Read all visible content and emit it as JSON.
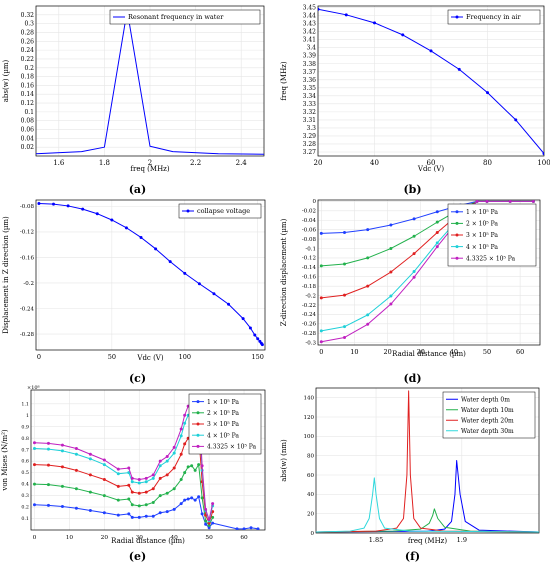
{
  "chart_data": [
    {
      "type": "line",
      "caption": "(a)",
      "xlabel": "freq (MHz)",
      "ylabel": "abs(w) (µm)",
      "xlim": [
        1.5,
        2.5
      ],
      "ylim": [
        0,
        0.34
      ],
      "xticks": [
        "1.6",
        "1.8",
        "2",
        "2.2",
        "2.4"
      ],
      "xtick_values": [
        1.6,
        1.8,
        2.0,
        2.2,
        2.4
      ],
      "yticks": [
        "0.02",
        "0.04",
        "0.06",
        "0.08",
        "0.1",
        "0.12",
        "0.14",
        "0.16",
        "0.18",
        "0.2",
        "0.22",
        "0.24",
        "0.26",
        "0.28",
        "0.3",
        "0.32"
      ],
      "ytick_values": [
        0.02,
        0.04,
        0.06,
        0.08,
        0.1,
        0.12,
        0.14,
        0.16,
        0.18,
        0.2,
        0.22,
        0.24,
        0.26,
        0.28,
        0.3,
        0.32
      ],
      "legend": "top-right",
      "grid": true,
      "series": [
        {
          "name": "Resonant frequency in water",
          "color": "#0000ff",
          "markers": false,
          "x": [
            1.5,
            1.7,
            1.8,
            1.9,
            2.0,
            2.1,
            2.3,
            2.5
          ],
          "y": [
            0.005,
            0.01,
            0.02,
            0.33,
            0.022,
            0.01,
            0.005,
            0.004
          ]
        }
      ]
    },
    {
      "type": "line",
      "caption": "(b)",
      "xlabel": "Vdc (V)",
      "ylabel": "freq (MHz)",
      "xlim": [
        20,
        100
      ],
      "ylim": [
        3.265,
        3.452
      ],
      "xticks": [
        "20",
        "40",
        "60",
        "80",
        "100"
      ],
      "xtick_values": [
        20,
        40,
        60,
        80,
        100
      ],
      "yticks": [
        "3.27",
        "3.28",
        "3.29",
        "3.3",
        "3.31",
        "3.32",
        "3.33",
        "3.34",
        "3.35",
        "3.36",
        "3.37",
        "3.38",
        "3.39",
        "3.4",
        "3.41",
        "3.42",
        "3.43",
        "3.44",
        "3.45"
      ],
      "ytick_values": [
        3.27,
        3.28,
        3.29,
        3.3,
        3.31,
        3.32,
        3.33,
        3.34,
        3.35,
        3.36,
        3.37,
        3.38,
        3.39,
        3.4,
        3.41,
        3.42,
        3.43,
        3.44,
        3.45
      ],
      "legend": "top-right",
      "grid": true,
      "series": [
        {
          "name": "Frequency in air",
          "color": "#0000ff",
          "markers": true,
          "x": [
            20,
            30,
            40,
            50,
            60,
            70,
            80,
            90,
            100
          ],
          "y": [
            3.448,
            3.441,
            3.431,
            3.416,
            3.396,
            3.373,
            3.344,
            3.31,
            3.268
          ]
        }
      ]
    },
    {
      "type": "line",
      "caption": "(c)",
      "xlabel": "Vdc (V)",
      "ylabel": "Displacement in Z direction (µm)",
      "xlim": [
        -2,
        155
      ],
      "ylim": [
        -0.305,
        -0.07
      ],
      "xticks": [
        "0",
        "50",
        "100",
        "150"
      ],
      "xtick_values": [
        0,
        50,
        100,
        150
      ],
      "yticks": [
        "-0.08",
        "-0.12",
        "-0.16",
        "-0.2",
        "-0.24",
        "-0.28"
      ],
      "ytick_values": [
        -0.08,
        -0.12,
        -0.16,
        -0.2,
        -0.24,
        -0.28
      ],
      "legend": "top-right",
      "grid": true,
      "series": [
        {
          "name": "collapse voltage",
          "color": "#0000ff",
          "markers": true,
          "x": [
            0,
            10,
            20,
            30,
            40,
            50,
            60,
            70,
            80,
            90,
            100,
            110,
            120,
            130,
            140,
            145,
            148,
            150,
            151.5,
            152.5,
            153.2
          ],
          "y": [
            -0.0755,
            -0.0764,
            -0.0793,
            -0.0843,
            -0.0915,
            -0.1013,
            -0.1136,
            -0.1287,
            -0.1465,
            -0.1665,
            -0.185,
            -0.2012,
            -0.2168,
            -0.2333,
            -0.2559,
            -0.2705,
            -0.2815,
            -0.2873,
            -0.2915,
            -0.2945,
            -0.2965
          ]
        }
      ]
    },
    {
      "type": "line",
      "caption": "(d)",
      "xlabel": "Radial distance (µm)",
      "ylabel": "Z-direction displacement (µm)",
      "xlim": [
        -1,
        66
      ],
      "ylim": [
        -0.305,
        0.003
      ],
      "xticks": [
        "0",
        "10",
        "20",
        "30",
        "40",
        "50",
        "60"
      ],
      "xtick_values": [
        0,
        10,
        20,
        30,
        40,
        50,
        60
      ],
      "yticks": [
        "0",
        "-0.02",
        "-0.04",
        "-0.06",
        "-0.08",
        "-0.1",
        "-0.12",
        "-0.14",
        "-0.16",
        "-0.18",
        "-0.2",
        "-0.22",
        "-0.24",
        "-0.26",
        "-0.28",
        "-0.3"
      ],
      "ytick_values": [
        0,
        -0.02,
        -0.04,
        -0.06,
        -0.08,
        -0.1,
        -0.12,
        -0.14,
        -0.16,
        -0.18,
        -0.2,
        -0.22,
        -0.24,
        -0.26,
        -0.28,
        -0.3
      ],
      "legend": "top-right",
      "grid": true,
      "series": [
        {
          "name": "1 × 10⁵ Pa",
          "color": "#1f3fff",
          "markers": true,
          "x": [
            0,
            7,
            14,
            21,
            28,
            35,
            42,
            47,
            50,
            57,
            64
          ],
          "y": [
            -0.068,
            -0.066,
            -0.06,
            -0.05,
            -0.037,
            -0.022,
            -0.008,
            0,
            0,
            0,
            0
          ]
        },
        {
          "name": "2 × 10⁵ Pa",
          "color": "#22b14c",
          "markers": true,
          "x": [
            0,
            7,
            14,
            21,
            28,
            35,
            42,
            47,
            50,
            57,
            64
          ],
          "y": [
            -0.137,
            -0.133,
            -0.12,
            -0.1,
            -0.074,
            -0.044,
            -0.016,
            0,
            0,
            0,
            0
          ]
        },
        {
          "name": "3 × 10⁵ Pa",
          "color": "#e02020",
          "markers": true,
          "x": [
            0,
            7,
            14,
            21,
            28,
            35,
            42,
            47,
            50,
            57,
            64
          ],
          "y": [
            -0.205,
            -0.199,
            -0.18,
            -0.15,
            -0.111,
            -0.066,
            -0.024,
            0,
            0,
            0,
            0
          ]
        },
        {
          "name": "4 × 10⁵ Pa",
          "color": "#1fd0d8",
          "markers": true,
          "x": [
            0,
            7,
            14,
            21,
            28,
            35,
            42,
            47,
            50,
            57,
            64
          ],
          "y": [
            -0.275,
            -0.266,
            -0.241,
            -0.201,
            -0.149,
            -0.088,
            -0.032,
            0,
            0,
            0,
            0
          ]
        },
        {
          "name": "4.3325 × 10⁵ Pa",
          "color": "#c020c0",
          "markers": true,
          "x": [
            0,
            7,
            14,
            21,
            28,
            35,
            42,
            47,
            50,
            57,
            64
          ],
          "y": [
            -0.298,
            -0.289,
            -0.261,
            -0.218,
            -0.161,
            -0.096,
            -0.035,
            0,
            0,
            0,
            0
          ]
        }
      ]
    },
    {
      "type": "line",
      "caption": "(e)",
      "xlabel": "Radial distance (µm)",
      "ylabel": "von Mises (N/m²)",
      "exponent_label": "×10⁸",
      "xlim": [
        -1,
        66
      ],
      "ylim": [
        0,
        1.22
      ],
      "xticks": [
        "0",
        "10",
        "20",
        "30",
        "40",
        "50",
        "60"
      ],
      "xtick_values": [
        0,
        10,
        20,
        30,
        40,
        50,
        60
      ],
      "yticks": [
        "0.1",
        "0.2",
        "0.3",
        "0.4",
        "0.5",
        "0.6",
        "0.7",
        "0.8",
        "0.9",
        "1",
        "1.1"
      ],
      "ytick_values": [
        0.1,
        0.2,
        0.3,
        0.4,
        0.5,
        0.6,
        0.7,
        0.8,
        0.9,
        1.0,
        1.1
      ],
      "legend": "top-right",
      "grid": true,
      "series": [
        {
          "name": "1 × 10⁵ Pa",
          "color": "#1f3fff",
          "markers": true,
          "x": [
            0,
            4,
            8,
            12,
            16,
            20,
            24,
            27,
            28,
            30,
            32,
            34,
            36,
            38,
            40,
            42,
            43,
            44,
            45,
            46,
            47,
            48,
            49,
            50,
            51,
            58,
            60,
            62,
            64
          ],
          "y": [
            0.22,
            0.215,
            0.205,
            0.19,
            0.17,
            0.15,
            0.13,
            0.14,
            0.11,
            0.11,
            0.12,
            0.12,
            0.15,
            0.16,
            0.18,
            0.23,
            0.26,
            0.27,
            0.28,
            0.26,
            0.29,
            0.14,
            0.05,
            0.02,
            0.06,
            0.01,
            0.01,
            0.02,
            0.01
          ]
        },
        {
          "name": "2 × 10⁵ Pa",
          "color": "#22b14c",
          "markers": true,
          "x": [
            0,
            4,
            8,
            12,
            16,
            20,
            24,
            27,
            28,
            30,
            32,
            34,
            36,
            38,
            40,
            42,
            43,
            44,
            45,
            46,
            47,
            48,
            49,
            50,
            51
          ],
          "y": [
            0.4,
            0.395,
            0.38,
            0.36,
            0.33,
            0.3,
            0.26,
            0.27,
            0.22,
            0.21,
            0.22,
            0.24,
            0.3,
            0.32,
            0.36,
            0.44,
            0.5,
            0.55,
            0.56,
            0.52,
            0.57,
            0.28,
            0.08,
            0.04,
            0.11
          ]
        },
        {
          "name": "3 × 10⁵ Pa",
          "color": "#e02020",
          "markers": true,
          "x": [
            0,
            4,
            8,
            12,
            16,
            20,
            24,
            27,
            28,
            30,
            32,
            34,
            36,
            38,
            40,
            42,
            43,
            44,
            45,
            46,
            47,
            48,
            49,
            50,
            51
          ],
          "y": [
            0.57,
            0.565,
            0.55,
            0.52,
            0.48,
            0.44,
            0.38,
            0.39,
            0.33,
            0.32,
            0.33,
            0.36,
            0.45,
            0.48,
            0.54,
            0.66,
            0.75,
            0.8,
            0.82,
            0.78,
            0.85,
            0.42,
            0.13,
            0.06,
            0.16
          ]
        },
        {
          "name": "4 × 10⁵ Pa",
          "color": "#1fd0d8",
          "markers": true,
          "x": [
            0,
            4,
            8,
            12,
            16,
            20,
            24,
            27,
            28,
            30,
            32,
            34,
            36,
            38,
            40,
            42,
            43,
            44,
            45,
            46,
            47,
            48,
            49,
            50,
            51
          ],
          "y": [
            0.71,
            0.705,
            0.69,
            0.66,
            0.62,
            0.57,
            0.49,
            0.5,
            0.42,
            0.41,
            0.42,
            0.45,
            0.56,
            0.6,
            0.67,
            0.82,
            0.93,
            1.0,
            1.02,
            0.97,
            1.06,
            0.52,
            0.17,
            0.08,
            0.21
          ]
        },
        {
          "name": "4.3325 × 10⁵ Pa",
          "color": "#c020c0",
          "markers": true,
          "x": [
            0,
            4,
            8,
            12,
            16,
            20,
            24,
            27,
            28,
            30,
            32,
            34,
            36,
            38,
            40,
            42,
            43,
            44,
            45,
            46,
            47,
            48,
            49,
            50,
            51
          ],
          "y": [
            0.76,
            0.755,
            0.74,
            0.71,
            0.66,
            0.61,
            0.53,
            0.54,
            0.45,
            0.44,
            0.45,
            0.48,
            0.6,
            0.64,
            0.72,
            0.88,
            1.0,
            1.08,
            1.1,
            1.05,
            1.15,
            0.56,
            0.18,
            0.09,
            0.23
          ]
        }
      ]
    },
    {
      "type": "line",
      "caption": "(f)",
      "xlabel": "freq (MHz)",
      "ylabel": "abs(w) (nm)",
      "xlim": [
        1.815,
        1.945
      ],
      "ylim": [
        0,
        150
      ],
      "xticks": [
        "1.85",
        "1.9"
      ],
      "xtick_values": [
        1.85,
        1.9
      ],
      "yticks": [
        "0",
        "20",
        "40",
        "60",
        "80",
        "100",
        "120",
        "140"
      ],
      "ytick_values": [
        0,
        20,
        40,
        60,
        80,
        100,
        120,
        140
      ],
      "legend": "top-right",
      "grid": true,
      "series": [
        {
          "name": "Water depth 0m",
          "color": "#0000ff",
          "markers": false,
          "x": [
            1.815,
            1.88,
            1.89,
            1.894,
            1.896,
            1.897,
            1.899,
            1.902,
            1.91,
            1.945
          ],
          "y": [
            1,
            2,
            4,
            12,
            40,
            75,
            40,
            12,
            3,
            1
          ]
        },
        {
          "name": "Water depth 10m",
          "color": "#22b14c",
          "markers": false,
          "x": [
            1.815,
            1.86,
            1.876,
            1.881,
            1.883,
            1.884,
            1.886,
            1.89,
            1.905,
            1.945
          ],
          "y": [
            1,
            2,
            4,
            10,
            18,
            25,
            15,
            6,
            2,
            1
          ]
        },
        {
          "name": "Water depth 20m",
          "color": "#e02020",
          "markers": false,
          "x": [
            1.815,
            1.85,
            1.862,
            1.866,
            1.868,
            1.869,
            1.87,
            1.872,
            1.876,
            1.89,
            1.945
          ],
          "y": [
            1,
            2,
            5,
            15,
            60,
            147,
            60,
            15,
            5,
            2,
            1
          ]
        },
        {
          "name": "Water depth 30m",
          "color": "#2fd8dc",
          "markers": false,
          "x": [
            1.815,
            1.835,
            1.843,
            1.846,
            1.848,
            1.849,
            1.85,
            1.852,
            1.855,
            1.87,
            1.945
          ],
          "y": [
            1,
            2,
            5,
            15,
            40,
            57,
            40,
            15,
            5,
            2,
            1
          ]
        }
      ]
    }
  ]
}
